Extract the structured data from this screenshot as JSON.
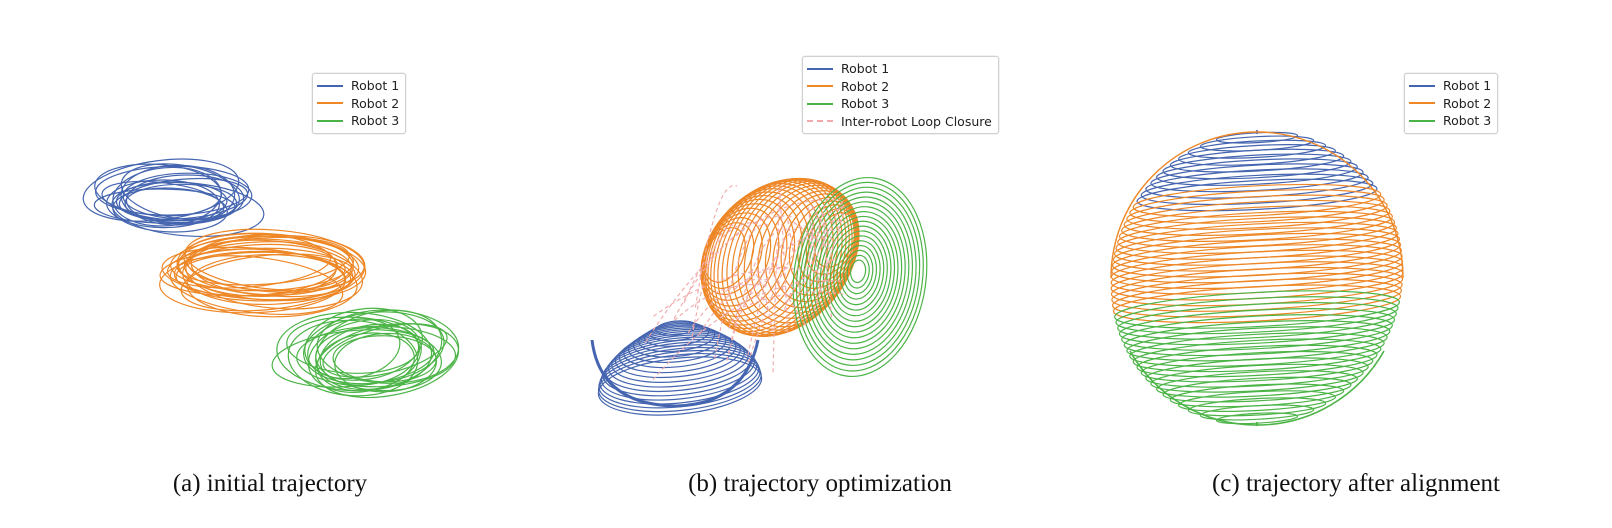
{
  "colors": {
    "robot1": "#4565b0",
    "robot2": "#ee8726",
    "robot3": "#4cb447",
    "loop_closure": "#f1a9aa"
  },
  "panels": [
    {
      "caption": "(a) initial trajectory",
      "legend": [
        {
          "label": "Robot 1",
          "color": "#4565b0",
          "style": "solid"
        },
        {
          "label": "Robot 2",
          "color": "#ee8726",
          "style": "solid"
        },
        {
          "label": "Robot 3",
          "color": "#4cb447",
          "style": "solid"
        }
      ]
    },
    {
      "caption": "(b) trajectory optimization",
      "legend": [
        {
          "label": "Robot 1",
          "color": "#4565b0",
          "style": "solid"
        },
        {
          "label": "Robot 2",
          "color": "#ee8726",
          "style": "solid"
        },
        {
          "label": "Robot 3",
          "color": "#4cb447",
          "style": "solid"
        },
        {
          "label": "Inter-robot Loop Closure",
          "color": "#f1a9aa",
          "style": "dashed"
        }
      ]
    },
    {
      "caption": "(c) trajectory after alignment",
      "legend": [
        {
          "label": "Robot 1",
          "color": "#4565b0",
          "style": "solid"
        },
        {
          "label": "Robot 2",
          "color": "#ee8726",
          "style": "solid"
        },
        {
          "label": "Robot 3",
          "color": "#4cb447",
          "style": "solid"
        }
      ]
    }
  ]
}
